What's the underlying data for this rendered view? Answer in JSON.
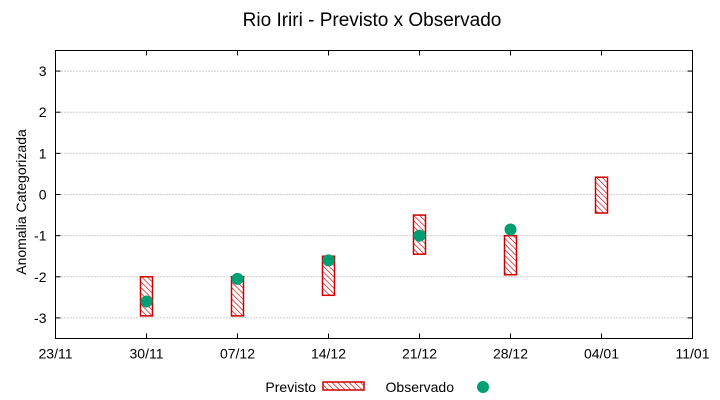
{
  "chart_data": {
    "type": "range-bar-with-points",
    "title": "Rio Iriri - Previsto x Observado",
    "xlabel": "",
    "ylabel": "Anomalia Categorizada",
    "x_ticks": [
      "23/11",
      "30/11",
      "07/12",
      "14/12",
      "21/12",
      "28/12",
      "04/01",
      "11/01"
    ],
    "ylim": [
      -3.5,
      3.5
    ],
    "y_ticks": [
      3,
      2,
      1,
      0,
      -1,
      -2,
      -3
    ],
    "grid": "horizontal dotted",
    "legend_position": "bottom-center",
    "series": [
      {
        "name": "Previsto",
        "kind": "range",
        "color": "#cc0000",
        "points": [
          {
            "x": 1,
            "low": -2.95,
            "high": -2.0
          },
          {
            "x": 2,
            "low": -2.95,
            "high": -2.0
          },
          {
            "x": 3,
            "low": -2.45,
            "high": -1.5
          },
          {
            "x": 4,
            "low": -1.45,
            "high": -0.5
          },
          {
            "x": 5,
            "low": -1.95,
            "high": -1.0
          },
          {
            "x": 6,
            "low": -0.45,
            "high": 0.42
          }
        ]
      },
      {
        "name": "Observado",
        "kind": "point",
        "color": "#009e73",
        "points": [
          {
            "x": 1,
            "y": -2.6
          },
          {
            "x": 2,
            "y": -2.05
          },
          {
            "x": 3,
            "y": -1.6
          },
          {
            "x": 4,
            "y": -1.0
          },
          {
            "x": 5,
            "y": -0.85
          }
        ]
      }
    ]
  }
}
